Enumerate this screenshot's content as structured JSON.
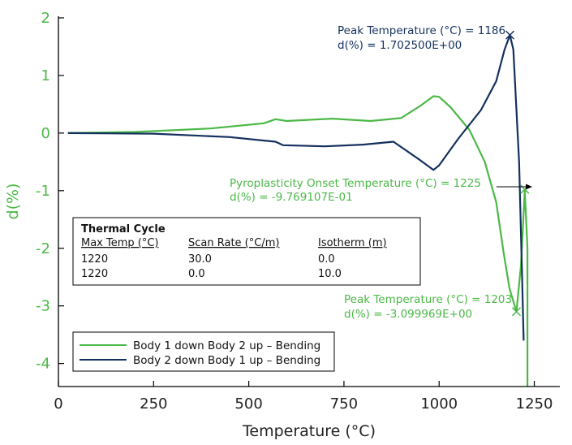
{
  "colors": {
    "series1": "#4bb847",
    "series2": "#14305e",
    "axis": "#000000",
    "ytext": "#4bb847"
  },
  "chart_data": {
    "type": "line",
    "xlabel": "Temperature (°C)",
    "ylabel": "d(%)",
    "xlim": [
      0,
      1300
    ],
    "ylim": [
      -4.4,
      2.0
    ],
    "x_ticks": [
      0,
      250,
      500,
      750,
      1000,
      1250
    ],
    "x_tick_labels": [
      "0",
      "250",
      "500",
      "750",
      "1000",
      "1250"
    ],
    "y_ticks": [
      2,
      1,
      0,
      -1,
      -2,
      -3,
      -4
    ],
    "y_tick_labels": [
      "2",
      "1",
      "0",
      "-1",
      "-2",
      "-3",
      "-4"
    ],
    "series": [
      {
        "name": "Body 1 down Body 2 up – Bending",
        "points": [
          [
            25,
            0
          ],
          [
            200,
            0.02
          ],
          [
            400,
            0.08
          ],
          [
            540,
            0.17
          ],
          [
            570,
            0.24
          ],
          [
            600,
            0.21
          ],
          [
            720,
            0.25
          ],
          [
            820,
            0.21
          ],
          [
            900,
            0.26
          ],
          [
            950,
            0.47
          ],
          [
            985,
            0.64
          ],
          [
            1000,
            0.63
          ],
          [
            1030,
            0.45
          ],
          [
            1080,
            0.05
          ],
          [
            1120,
            -0.5
          ],
          [
            1150,
            -1.2
          ],
          [
            1170,
            -2.1
          ],
          [
            1185,
            -2.7
          ],
          [
            1203,
            -3.1
          ],
          [
            1215,
            -2.3
          ],
          [
            1225,
            -1.0
          ],
          [
            1232,
            -2.0
          ],
          [
            1232,
            -4.4
          ]
        ]
      },
      {
        "name": "Body 2 down Body 1 up – Bending",
        "points": [
          [
            25,
            0
          ],
          [
            250,
            -0.01
          ],
          [
            450,
            -0.07
          ],
          [
            540,
            -0.13
          ],
          [
            570,
            -0.15
          ],
          [
            590,
            -0.21
          ],
          [
            700,
            -0.23
          ],
          [
            800,
            -0.2
          ],
          [
            880,
            -0.15
          ],
          [
            950,
            -0.47
          ],
          [
            985,
            -0.64
          ],
          [
            1000,
            -0.56
          ],
          [
            1050,
            -0.1
          ],
          [
            1110,
            0.4
          ],
          [
            1150,
            0.9
          ],
          [
            1172,
            1.45
          ],
          [
            1186,
            1.7
          ],
          [
            1195,
            1.45
          ],
          [
            1210,
            -0.5
          ],
          [
            1218,
            -2.5
          ],
          [
            1222,
            -3.6
          ]
        ]
      }
    ],
    "markers": [
      {
        "series": 0,
        "x": 1225,
        "y": -0.977
      },
      {
        "series": 0,
        "x": 1203,
        "y": -3.1
      },
      {
        "series": 1,
        "x": 1186,
        "y": 1.7025
      }
    ],
    "annotations": [
      {
        "series": 1,
        "lines": [
          "Peak Temperature (°C) = 1186",
          "d(%) = 1.702500E+00"
        ]
      },
      {
        "series": 0,
        "lines": [
          "Pyroplasticity Onset Temperature (°C) = 1225",
          "d(%) = -9.769107E-01"
        ]
      },
      {
        "series": 0,
        "lines": [
          "Peak Temperature (°C) = 1203",
          "d(%) = -3.099969E+00"
        ]
      }
    ],
    "thermal_cycle": {
      "title": "Thermal Cycle",
      "headers": [
        "Max Temp (°C)",
        "Scan Rate (°C/m)",
        "Isotherm (m)"
      ],
      "rows": [
        [
          "1220",
          "30.0",
          "0.0"
        ],
        [
          "1220",
          "0.0",
          "10.0"
        ]
      ]
    },
    "legend": "bottom-left"
  }
}
